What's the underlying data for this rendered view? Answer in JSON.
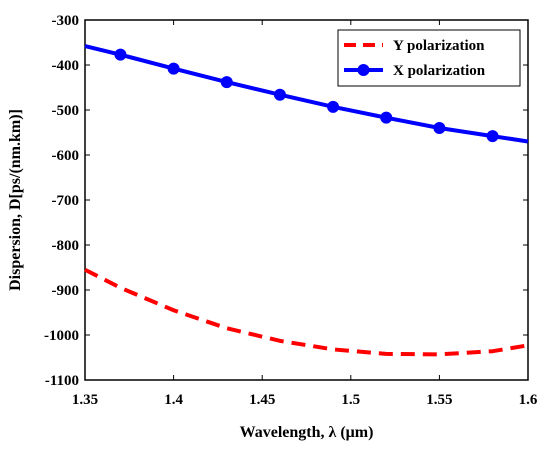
{
  "chart_data": {
    "type": "line",
    "xlabel": "Wavelength, λ (μm)",
    "ylabel": "Dispersion, D[ps/(nm.km)]",
    "xlim": [
      1.35,
      1.6
    ],
    "ylim": [
      -1100,
      -300
    ],
    "x_ticks": [
      "1.35",
      "1.4",
      "1.45",
      "1.5",
      "1.55",
      "1.6"
    ],
    "y_ticks": [
      "-300",
      "-400",
      "-500",
      "-600",
      "-700",
      "-800",
      "-900",
      "-1000",
      "-1100"
    ],
    "grid": false,
    "legend_position": "top-right",
    "series": [
      {
        "name": "Y polarization",
        "color": "#ff0000",
        "line_style": "dashed",
        "marker": "none",
        "x": [
          1.35,
          1.37,
          1.4,
          1.43,
          1.46,
          1.49,
          1.52,
          1.55,
          1.58,
          1.6
        ],
        "y": [
          -855,
          -895,
          -945,
          -985,
          -1013,
          -1032,
          -1042,
          -1043,
          -1036,
          -1023
        ]
      },
      {
        "name": "X polarization",
        "color": "#0000ff",
        "line_style": "solid",
        "marker": "circle",
        "x": [
          1.35,
          1.37,
          1.4,
          1.43,
          1.46,
          1.49,
          1.52,
          1.55,
          1.58,
          1.6
        ],
        "y": [
          -358,
          -377,
          -408,
          -438,
          -466,
          -493,
          -517,
          -540,
          -558,
          -570
        ],
        "marker_x": [
          1.37,
          1.4,
          1.43,
          1.46,
          1.49,
          1.52,
          1.55,
          1.58
        ]
      }
    ]
  }
}
